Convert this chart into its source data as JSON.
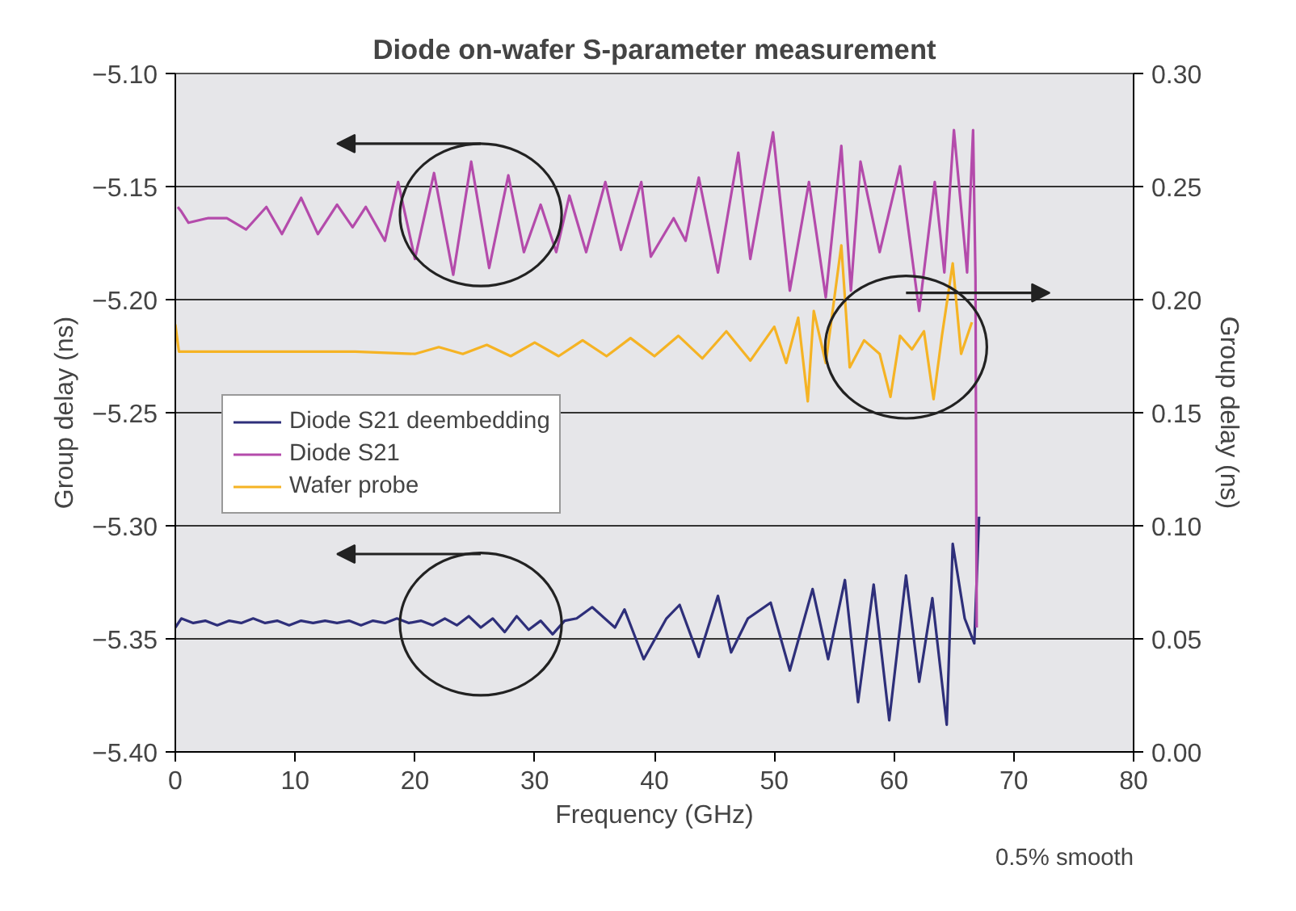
{
  "chart_data": {
    "type": "line",
    "title": "Diode on-wafer S-parameter measurement",
    "xlabel": "Frequency (GHz)",
    "ylabel": "Group delay (ns)",
    "y2label": "Group delay (ns)",
    "xlim": [
      0,
      80
    ],
    "xticks": [
      0,
      10,
      20,
      30,
      40,
      50,
      60,
      70,
      80
    ],
    "ylim": [
      -5.4,
      -5.1
    ],
    "yticks": [
      {
        "value": -5.4,
        "label": "−5.40"
      },
      {
        "value": -5.35,
        "label": "−5.35"
      },
      {
        "value": -5.3,
        "label": "−5.30"
      },
      {
        "value": -5.25,
        "label": "−5.25"
      },
      {
        "value": -5.2,
        "label": "−5.20"
      },
      {
        "value": -5.15,
        "label": "−5.15"
      },
      {
        "value": -5.1,
        "label": "−5.10"
      }
    ],
    "y2lim": [
      0,
      0.3
    ],
    "y2ticks": [
      {
        "value": 0,
        "label": "0.00"
      },
      {
        "value": 0.05,
        "label": "0.05"
      },
      {
        "value": 0.1,
        "label": "0.10"
      },
      {
        "value": 0.15,
        "label": "0.15"
      },
      {
        "value": 0.2,
        "label": "0.20"
      },
      {
        "value": 0.25,
        "label": "0.25"
      },
      {
        "value": 0.3,
        "label": "0.30"
      }
    ],
    "grid": "y",
    "legend": "left",
    "marker": "none",
    "line_style": "solid",
    "annotations": [
      "0.5% smooth"
    ],
    "series": [
      {
        "name": "Diode S21 deembedding",
        "color": "#2e2f7a",
        "x": [
          0,
          0.5,
          1.5,
          2.5,
          3.5,
          4.5,
          5.5,
          6.5,
          7.5,
          8.5,
          9.5,
          10.5,
          11.5,
          12.5,
          13.5,
          14.5,
          15.5,
          16.5,
          17.5,
          18.5,
          19.5,
          20.5,
          21.5,
          22.5,
          23.5,
          24.5,
          25.5,
          26.5,
          27.5,
          28.5,
          29.5,
          30.5,
          31.5,
          32.5,
          33.5,
          34.8,
          36.7,
          37.5,
          39.1,
          41.0,
          42.1,
          43.7,
          45.3,
          46.4,
          47.8,
          49.7,
          51.3,
          53.2,
          54.5,
          55.9,
          57.0,
          58.3,
          59.6,
          61.0,
          62.1,
          63.2,
          64.4,
          64.9,
          65.9,
          66.7,
          67.1
        ],
        "values": [
          -5.345,
          -5.341,
          -5.343,
          -5.342,
          -5.344,
          -5.342,
          -5.343,
          -5.341,
          -5.343,
          -5.342,
          -5.344,
          -5.342,
          -5.343,
          -5.342,
          -5.343,
          -5.342,
          -5.344,
          -5.342,
          -5.343,
          -5.341,
          -5.343,
          -5.342,
          -5.344,
          -5.341,
          -5.344,
          -5.34,
          -5.345,
          -5.341,
          -5.347,
          -5.34,
          -5.346,
          -5.342,
          -5.348,
          -5.342,
          -5.341,
          -5.336,
          -5.345,
          -5.337,
          -5.359,
          -5.341,
          -5.335,
          -5.358,
          -5.331,
          -5.356,
          -5.341,
          -5.334,
          -5.364,
          -5.328,
          -5.359,
          -5.324,
          -5.378,
          -5.326,
          -5.386,
          -5.322,
          -5.369,
          -5.332,
          -5.388,
          -5.308,
          -5.341,
          -5.352,
          -5.296
        ]
      },
      {
        "name": "Diode S21",
        "color": "#b44bab",
        "x": [
          0.2,
          0.5,
          1.1,
          2.7,
          4.3,
          5.9,
          7.6,
          8.9,
          10.5,
          11.9,
          13.5,
          14.8,
          15.9,
          17.5,
          18.6,
          20.0,
          21.6,
          23.2,
          24.7,
          26.2,
          27.8,
          29.1,
          30.5,
          31.8,
          32.9,
          34.3,
          35.9,
          37.2,
          38.9,
          39.7,
          41.6,
          42.6,
          43.7,
          45.3,
          47.0,
          48.0,
          49.9,
          51.3,
          52.9,
          54.3,
          55.6,
          56.4,
          57.2,
          58.8,
          60.5,
          62.1,
          63.4,
          64.2,
          65.0,
          66.1,
          66.6,
          66.8,
          66.9
        ],
        "values": [
          -5.159,
          -5.161,
          -5.166,
          -5.164,
          -5.164,
          -5.169,
          -5.159,
          -5.171,
          -5.155,
          -5.171,
          -5.158,
          -5.168,
          -5.159,
          -5.174,
          -5.148,
          -5.182,
          -5.144,
          -5.189,
          -5.139,
          -5.186,
          -5.145,
          -5.179,
          -5.158,
          -5.179,
          -5.154,
          -5.179,
          -5.148,
          -5.178,
          -5.148,
          -5.181,
          -5.164,
          -5.174,
          -5.146,
          -5.188,
          -5.135,
          -5.182,
          -5.126,
          -5.196,
          -5.148,
          -5.199,
          -5.132,
          -5.196,
          -5.139,
          -5.179,
          -5.141,
          -5.205,
          -5.148,
          -5.188,
          -5.125,
          -5.188,
          -5.125,
          -5.19,
          -5.345
        ]
      },
      {
        "name": "Wafer probe",
        "color": "#f5b324",
        "axis": "y2",
        "x": [
          0,
          0.3,
          5,
          10,
          15,
          20,
          22,
          24,
          26,
          28,
          30,
          32,
          34,
          36,
          38,
          40,
          42,
          44,
          46,
          48,
          50,
          51,
          52,
          52.8,
          53.3,
          54.3,
          55.6,
          56.3,
          57.5,
          58.8,
          59.7,
          60.5,
          61.5,
          62.5,
          63.3,
          64.0,
          64.9,
          65.6,
          66.5
        ],
        "values": [
          0.189,
          0.177,
          0.177,
          0.177,
          0.177,
          0.176,
          0.179,
          0.176,
          0.18,
          0.175,
          0.181,
          0.175,
          0.182,
          0.175,
          0.183,
          0.175,
          0.184,
          0.174,
          0.186,
          0.173,
          0.188,
          0.172,
          0.192,
          0.155,
          0.195,
          0.172,
          0.224,
          0.17,
          0.182,
          0.176,
          0.157,
          0.184,
          0.178,
          0.186,
          0.156,
          0.184,
          0.216,
          0.176,
          0.19
        ]
      }
    ]
  }
}
